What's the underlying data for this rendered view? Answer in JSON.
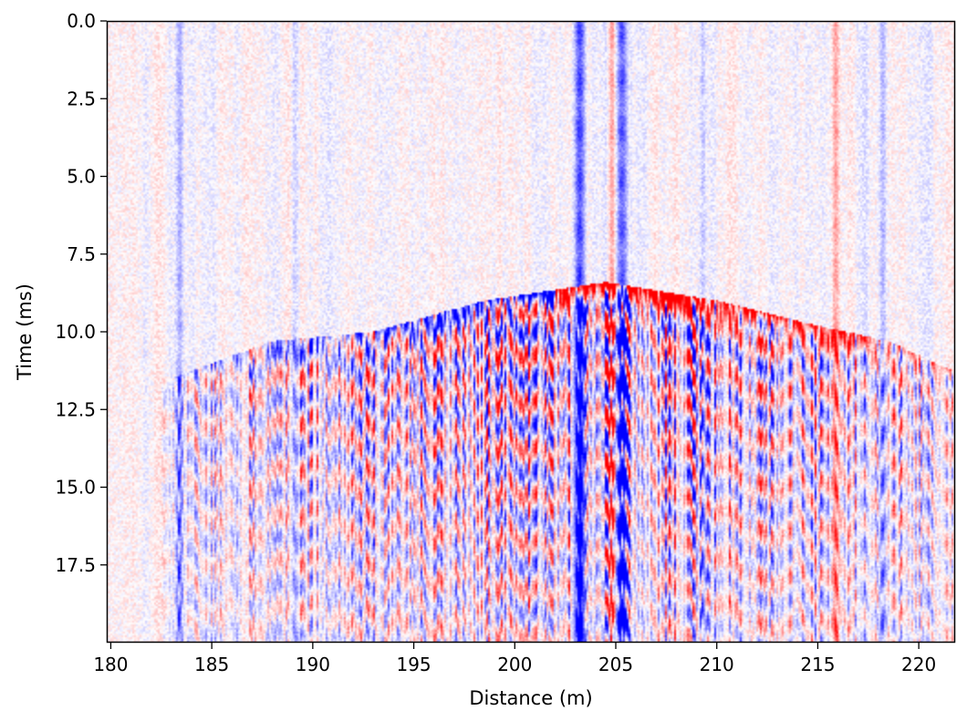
{
  "chart_data": {
    "type": "heatmap",
    "title": "",
    "xlabel": "Distance (m)",
    "ylabel": "Time (ms)",
    "xlim": [
      179.8,
      221.8
    ],
    "ylim": [
      20.0,
      0.0
    ],
    "y_inverted": true,
    "xticks": [
      180,
      185,
      190,
      195,
      200,
      205,
      210,
      215,
      220
    ],
    "xtick_labels": [
      "180",
      "185",
      "190",
      "195",
      "200",
      "205",
      "210",
      "215",
      "220"
    ],
    "yticks": [
      0.0,
      2.5,
      5.0,
      7.5,
      10.0,
      12.5,
      15.0,
      17.5
    ],
    "ytick_labels": [
      "0.0",
      "2.5",
      "5.0",
      "7.5",
      "10.0",
      "12.5",
      "15.0",
      "17.5"
    ],
    "colormap": "seismic (blue-white-red)",
    "colors": {
      "positive": "#ff0000",
      "negative": "#0000ff",
      "zero": "#ffffff"
    },
    "grid": false,
    "colorbar": false,
    "features": {
      "first_arrival_apex": {
        "distance_m": 204.5,
        "time_ms": 8.4
      },
      "strong_traces": [
        {
          "distance_m": 183.4,
          "polarity": "negative",
          "strength": 0.45
        },
        {
          "distance_m": 186.2,
          "polarity": "negative",
          "strength": 0.2
        },
        {
          "distance_m": 189.1,
          "polarity": "negative",
          "strength": 0.3
        },
        {
          "distance_m": 203.2,
          "polarity": "negative",
          "strength": 1.0
        },
        {
          "distance_m": 204.8,
          "polarity": "positive",
          "strength": 0.55
        },
        {
          "distance_m": 205.3,
          "polarity": "negative",
          "strength": 1.0
        },
        {
          "distance_m": 209.3,
          "polarity": "negative",
          "strength": 0.35
        },
        {
          "distance_m": 215.9,
          "polarity": "positive",
          "strength": 0.45
        },
        {
          "distance_m": 218.2,
          "polarity": "negative",
          "strength": 0.3
        }
      ],
      "event_envelope": [
        {
          "distance_m": 183.0,
          "time_ms": 11.5
        },
        {
          "distance_m": 188.0,
          "time_ms": 10.3
        },
        {
          "distance_m": 193.0,
          "time_ms": 10.0
        },
        {
          "distance_m": 198.5,
          "time_ms": 9.0
        },
        {
          "distance_m": 204.5,
          "time_ms": 8.4
        },
        {
          "distance_m": 210.0,
          "time_ms": 9.0
        },
        {
          "distance_m": 215.0,
          "time_ms": 9.8
        },
        {
          "distance_m": 218.5,
          "time_ms": 10.3
        },
        {
          "distance_m": 221.5,
          "time_ms": 11.2
        }
      ]
    }
  }
}
